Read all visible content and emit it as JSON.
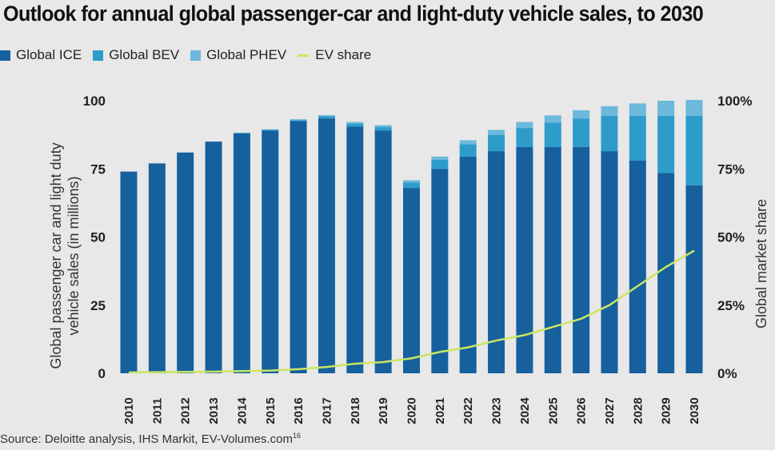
{
  "title": "Outlook for annual global passenger-car and light-duty vehicle sales, to 2030",
  "source": "Source: Deloitte analysis, IHS Markit, EV-Volumes.com",
  "source_note": "16",
  "legend": [
    {
      "label": "Global ICE",
      "color": "#16609e",
      "kind": "bar"
    },
    {
      "label": "Global BEV",
      "color": "#2d9ccb",
      "kind": "bar"
    },
    {
      "label": "Global PHEV",
      "color": "#6cb9db",
      "kind": "bar"
    },
    {
      "label": "EV share",
      "color": "#cbe561",
      "kind": "line"
    }
  ],
  "chart_data": {
    "type": "bar",
    "stacked": true,
    "categories": [
      "2010",
      "2011",
      "2012",
      "2013",
      "2014",
      "2015",
      "2016",
      "2017",
      "2018",
      "2019",
      "2020",
      "2021",
      "2022",
      "2023",
      "2024",
      "2025",
      "2026",
      "2027",
      "2028",
      "2029",
      "2030"
    ],
    "series": [
      {
        "name": "Global ICE",
        "color": "#16609e",
        "values": [
          74,
          77,
          81,
          85,
          88,
          89,
          92.5,
          93.5,
          90.5,
          89,
          68,
          75,
          79.5,
          81.5,
          83,
          83,
          83,
          81.5,
          78,
          73.5,
          69
        ]
      },
      {
        "name": "Global BEV",
        "color": "#2d9ccb",
        "values": [
          0,
          0,
          0,
          0,
          0.2,
          0.3,
          0.4,
          0.8,
          1.1,
          1.3,
          2.0,
          3.3,
          4.5,
          6,
          7,
          9,
          10.5,
          13,
          16.5,
          21,
          25.5
        ]
      },
      {
        "name": "Global PHEV",
        "color": "#6cb9db",
        "values": [
          0,
          0,
          0,
          0,
          0.1,
          0.2,
          0.3,
          0.4,
          0.6,
          0.7,
          0.8,
          1.2,
          1.5,
          1.8,
          2.2,
          2.6,
          3.0,
          3.5,
          4.5,
          5.5,
          5.8
        ]
      }
    ],
    "line": {
      "name": "EV share",
      "color": "#cbe561",
      "axis": "right",
      "values": [
        0.3,
        0.4,
        0.5,
        0.6,
        0.8,
        1.0,
        1.5,
        2.3,
        3.5,
        4.1,
        5.5,
        7.8,
        9.5,
        12,
        14,
        17,
        20,
        25,
        32,
        39,
        45
      ]
    },
    "ylabel": "Global passenger car and light duty vehicle sales (in millions)",
    "ylabel_line1": "Global passenger car and light duty",
    "ylabel_line2": "vehicle sales (in millions)",
    "y2label": "Global market share",
    "ylim": [
      0,
      100
    ],
    "y2lim": [
      0,
      100
    ],
    "yticks": [
      "0",
      "25",
      "50",
      "75",
      "100"
    ],
    "y2ticks": [
      "0%",
      "25%",
      "50%",
      "75%",
      "100%"
    ],
    "grid": false
  }
}
